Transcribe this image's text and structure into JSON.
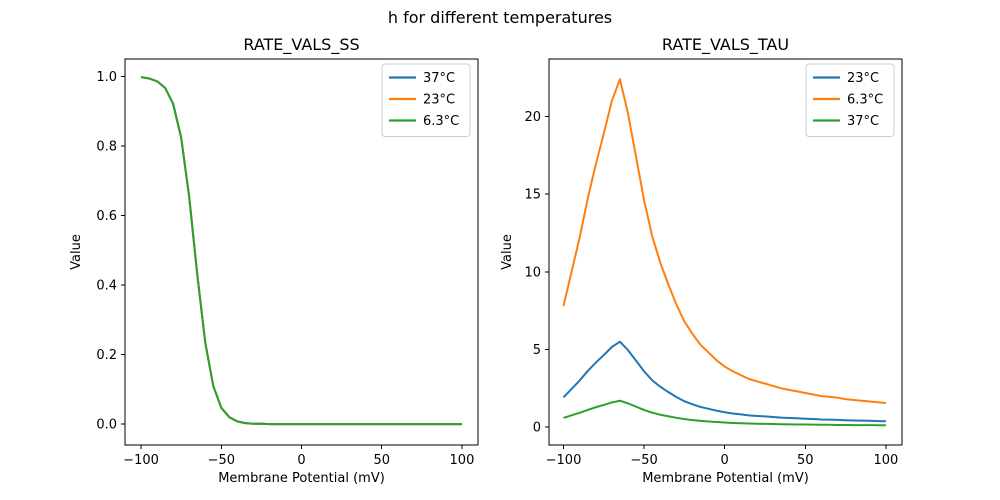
{
  "figure": {
    "title": "h for different temperatures",
    "background": "#ffffff"
  },
  "chart_data": [
    {
      "type": "line",
      "title": "RATE_VALS_SS",
      "xlabel": "Membrane Potential (mV)",
      "ylabel": "Value",
      "xlim": [
        -110,
        110
      ],
      "ylim": [
        -0.06,
        1.05
      ],
      "xticks": [
        -100,
        -50,
        0,
        50,
        100
      ],
      "xtick_labels": [
        "−100",
        "−50",
        "0",
        "50",
        "100"
      ],
      "yticks": [
        0.0,
        0.2,
        0.4,
        0.6,
        0.8,
        1.0
      ],
      "ytick_labels": [
        "0.0",
        "0.2",
        "0.4",
        "0.6",
        "0.8",
        "1.0"
      ],
      "grid": false,
      "legend_position": "upper right",
      "x": [
        -100,
        -95,
        -90,
        -85,
        -80,
        -75,
        -70,
        -65,
        -60,
        -55,
        -50,
        -45,
        -40,
        -35,
        -30,
        -25,
        -20,
        -15,
        -10,
        -5,
        0,
        5,
        10,
        15,
        20,
        25,
        30,
        35,
        40,
        45,
        50,
        55,
        60,
        65,
        70,
        75,
        80,
        85,
        90,
        95,
        100
      ],
      "series": [
        {
          "name": "37°C",
          "color": "#1f77b4",
          "values": [
            0.998,
            0.994,
            0.986,
            0.967,
            0.921,
            0.824,
            0.654,
            0.432,
            0.235,
            0.11,
            0.047,
            0.02,
            0.008,
            0.003,
            0.001,
            0.001,
            0,
            0,
            0,
            0,
            0,
            0,
            0,
            0,
            0,
            0,
            0,
            0,
            0,
            0,
            0,
            0,
            0,
            0,
            0,
            0,
            0,
            0,
            0,
            0,
            0
          ]
        },
        {
          "name": "23°C",
          "color": "#ff7f0e",
          "values": [
            0.998,
            0.994,
            0.986,
            0.967,
            0.921,
            0.824,
            0.654,
            0.432,
            0.235,
            0.11,
            0.047,
            0.02,
            0.008,
            0.003,
            0.001,
            0.001,
            0,
            0,
            0,
            0,
            0,
            0,
            0,
            0,
            0,
            0,
            0,
            0,
            0,
            0,
            0,
            0,
            0,
            0,
            0,
            0,
            0,
            0,
            0,
            0,
            0
          ]
        },
        {
          "name": "6.3°C",
          "color": "#2ca02c",
          "values": [
            0.998,
            0.994,
            0.986,
            0.967,
            0.921,
            0.824,
            0.654,
            0.432,
            0.235,
            0.11,
            0.047,
            0.02,
            0.008,
            0.003,
            0.001,
            0.001,
            0,
            0,
            0,
            0,
            0,
            0,
            0,
            0,
            0,
            0,
            0,
            0,
            0,
            0,
            0,
            0,
            0,
            0,
            0,
            0,
            0,
            0,
            0,
            0,
            0
          ]
        }
      ]
    },
    {
      "type": "line",
      "title": "RATE_VALS_TAU",
      "xlabel": "Membrane Potential (mV)",
      "ylabel": "Value",
      "xlim": [
        -109,
        110
      ],
      "ylim": [
        -1.15,
        23.7
      ],
      "xticks": [
        -100,
        -50,
        0,
        50,
        100
      ],
      "xtick_labels": [
        "−100",
        "−50",
        "0",
        "50",
        "100"
      ],
      "yticks": [
        0,
        5,
        10,
        15,
        20
      ],
      "ytick_labels": [
        "0",
        "5",
        "10",
        "15",
        "20"
      ],
      "grid": false,
      "legend_position": "upper right",
      "x": [
        -100,
        -95,
        -90,
        -85,
        -80,
        -75,
        -70,
        -65,
        -60,
        -55,
        -50,
        -45,
        -40,
        -35,
        -30,
        -25,
        -20,
        -15,
        -10,
        -5,
        0,
        5,
        10,
        15,
        20,
        25,
        30,
        35,
        40,
        45,
        50,
        55,
        60,
        65,
        70,
        75,
        80,
        85,
        90,
        95,
        100
      ],
      "series": [
        {
          "name": "23°C",
          "color": "#1f77b4",
          "values": [
            1.92,
            2.46,
            3.0,
            3.61,
            4.15,
            4.64,
            5.16,
            5.5,
            4.96,
            4.28,
            3.59,
            3.02,
            2.6,
            2.26,
            1.94,
            1.67,
            1.47,
            1.3,
            1.18,
            1.06,
            0.96,
            0.88,
            0.82,
            0.76,
            0.72,
            0.69,
            0.65,
            0.61,
            0.59,
            0.57,
            0.54,
            0.52,
            0.49,
            0.48,
            0.47,
            0.44,
            0.43,
            0.42,
            0.41,
            0.39,
            0.38
          ]
        },
        {
          "name": "6.3°C",
          "color": "#ff7f0e",
          "values": [
            7.8,
            10.0,
            12.2,
            14.7,
            16.9,
            18.9,
            21.0,
            22.4,
            20.2,
            17.4,
            14.6,
            12.3,
            10.6,
            9.2,
            7.9,
            6.8,
            6.0,
            5.3,
            4.8,
            4.3,
            3.9,
            3.6,
            3.35,
            3.1,
            2.95,
            2.8,
            2.65,
            2.5,
            2.4,
            2.3,
            2.2,
            2.1,
            2.0,
            1.95,
            1.9,
            1.8,
            1.75,
            1.7,
            1.65,
            1.6,
            1.55
          ]
        },
        {
          "name": "37°C",
          "color": "#2ca02c",
          "values": [
            0.59,
            0.76,
            0.92,
            1.11,
            1.28,
            1.43,
            1.59,
            1.7,
            1.53,
            1.32,
            1.11,
            0.93,
            0.8,
            0.7,
            0.6,
            0.52,
            0.45,
            0.4,
            0.36,
            0.33,
            0.3,
            0.27,
            0.25,
            0.23,
            0.22,
            0.21,
            0.2,
            0.19,
            0.18,
            0.17,
            0.17,
            0.16,
            0.15,
            0.15,
            0.14,
            0.14,
            0.13,
            0.13,
            0.13,
            0.12,
            0.12
          ]
        }
      ]
    }
  ]
}
